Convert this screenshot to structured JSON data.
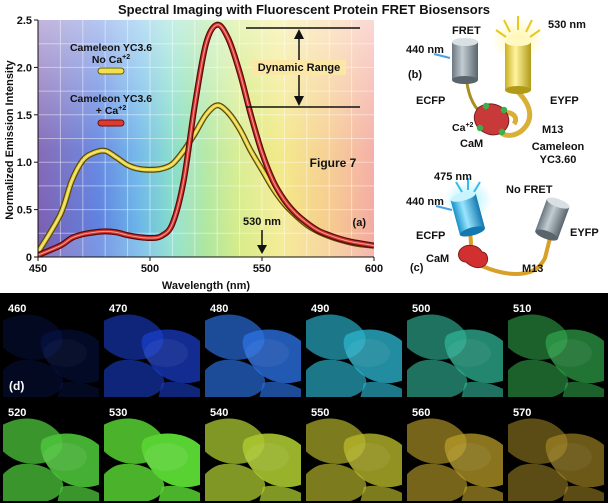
{
  "title": "Spectral Imaging with Fluorescent Protein FRET Biosensors",
  "chart_data": {
    "type": "line",
    "xlabel": "Wavelength (nm)",
    "ylabel": "Normalized Emission Intensity",
    "xlim": [
      450,
      600
    ],
    "ylim": [
      0,
      2.5
    ],
    "x_ticks": [
      "450",
      "500",
      "550",
      "600"
    ],
    "y_ticks": [
      "0",
      "0.5",
      "1.0",
      "1.5",
      "2.0",
      "2.5"
    ],
    "grid": true,
    "series": [
      {
        "name": "Cameleon YC3.6 No Ca+2",
        "color": "#e8d23a",
        "x": [
          450,
          460,
          465,
          470,
          475,
          480,
          485,
          490,
          495,
          500,
          505,
          510,
          515,
          520,
          525,
          530,
          535,
          540,
          545,
          550,
          555,
          560,
          565,
          570,
          575,
          580,
          585,
          590,
          595,
          600
        ],
        "y": [
          0.05,
          0.45,
          0.8,
          1.02,
          1.1,
          1.12,
          1.05,
          0.97,
          0.93,
          0.92,
          0.93,
          0.98,
          1.12,
          1.3,
          1.5,
          1.6,
          1.52,
          1.35,
          1.12,
          0.92,
          0.72,
          0.56,
          0.44,
          0.34,
          0.27,
          0.22,
          0.18,
          0.15,
          0.13,
          0.12
        ]
      },
      {
        "name": "Cameleon YC3.6 + Ca+2",
        "color": "#d8322a",
        "x": [
          450,
          460,
          465,
          470,
          475,
          480,
          485,
          490,
          495,
          500,
          505,
          510,
          515,
          520,
          525,
          530,
          535,
          540,
          545,
          550,
          555,
          560,
          565,
          570,
          575,
          580,
          585,
          590,
          595,
          600
        ],
        "y": [
          0.02,
          0.12,
          0.2,
          0.24,
          0.26,
          0.27,
          0.26,
          0.23,
          0.21,
          0.2,
          0.22,
          0.35,
          0.8,
          1.6,
          2.25,
          2.45,
          2.3,
          1.95,
          1.5,
          1.1,
          0.8,
          0.6,
          0.46,
          0.36,
          0.28,
          0.23,
          0.19,
          0.16,
          0.14,
          0.12
        ]
      }
    ],
    "legend": {
      "no_ca_line1": "Cameleon YC3.6",
      "no_ca_line2": "No Ca",
      "ca_line1": "Cameleon YC3.6",
      "ca_line2": "+ Ca",
      "sup": "+2"
    },
    "annotations": {
      "dynamic_range": "Dynamic Range",
      "figure": "Figure 7",
      "marker": "530 nm",
      "panel": "(a)"
    }
  },
  "diagram": {
    "top": {
      "fret": "FRET",
      "wl_out": "530 nm",
      "wl_in": "440 nm",
      "panel": "(b)",
      "ecfp": "ECFP",
      "eyfp": "EYFP",
      "ca": "Ca",
      "ca_sup": "+2",
      "cam": "CaM",
      "m13": "M13",
      "name1": "Cameleon",
      "name2": "YC3.60"
    },
    "bottom": {
      "wl_out": "475 nm",
      "no_fret": "No FRET",
      "wl_in": "440 nm",
      "ecfp": "ECFP",
      "eyfp": "EYFP",
      "panel": "(c)",
      "cam": "CaM",
      "m13": "M13"
    }
  },
  "images": {
    "panel_label": "(d)",
    "tiles": [
      {
        "label": "460",
        "color": "#0a1d6e",
        "level": 0.35
      },
      {
        "label": "470",
        "color": "#1a3fd0",
        "level": 0.7
      },
      {
        "label": "480",
        "color": "#2a6fe0",
        "level": 0.8
      },
      {
        "label": "490",
        "color": "#2ab0c8",
        "level": 0.8
      },
      {
        "label": "500",
        "color": "#2fb394",
        "level": 0.75
      },
      {
        "label": "510",
        "color": "#2fa54a",
        "level": 0.7
      },
      {
        "label": "520",
        "color": "#4cc23a",
        "level": 0.9
      },
      {
        "label": "530",
        "color": "#58d233",
        "level": 1.0
      },
      {
        "label": "540",
        "color": "#a8c530",
        "level": 0.9
      },
      {
        "label": "550",
        "color": "#b7b62b",
        "level": 0.8
      },
      {
        "label": "560",
        "color": "#b89c28",
        "level": 0.75
      },
      {
        "label": "570",
        "color": "#a68925",
        "level": 0.65
      }
    ]
  }
}
